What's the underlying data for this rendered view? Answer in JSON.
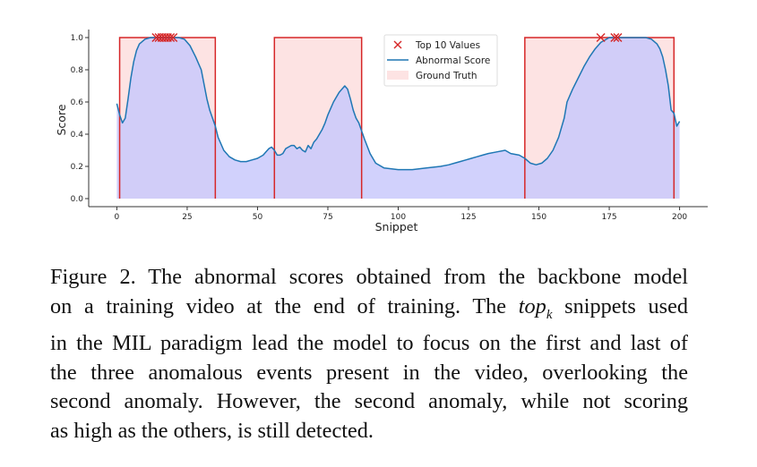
{
  "chart_data": {
    "type": "line",
    "xlabel": "Snippet",
    "ylabel": "Score",
    "xlim": [
      -10,
      210
    ],
    "ylim": [
      -0.05,
      1.05
    ],
    "xticks": [
      0,
      25,
      50,
      75,
      100,
      125,
      150,
      175,
      200
    ],
    "yticks": [
      0.0,
      0.2,
      0.4,
      0.6,
      0.8,
      1.0
    ],
    "ytick_labels": [
      "0.0",
      "0.2",
      "0.4",
      "0.6",
      "0.8",
      "1.0"
    ],
    "legend_position": "top-center",
    "grid": false,
    "series": [
      {
        "name": "Abnormal Score",
        "kind": "line-with-fill",
        "color": "#1f77b4",
        "fill_color": "#c9c9fb",
        "x": [
          0,
          1,
          2,
          3,
          4,
          5,
          6,
          7,
          8,
          10,
          12,
          15,
          18,
          20,
          22,
          24,
          26,
          28,
          30,
          32,
          33,
          34,
          35,
          36,
          38,
          40,
          42,
          44,
          46,
          48,
          50,
          52,
          53,
          54,
          55,
          56,
          57,
          58,
          59,
          60,
          61,
          62,
          63,
          64,
          65,
          66,
          67,
          68,
          69,
          70,
          71,
          72,
          73,
          74,
          75,
          76,
          77,
          78,
          79,
          80,
          81,
          82,
          83,
          84,
          85,
          86,
          87,
          88,
          90,
          92,
          95,
          100,
          105,
          110,
          115,
          118,
          120,
          122,
          124,
          126,
          128,
          130,
          132,
          135,
          138,
          140,
          143,
          145,
          147,
          149,
          151,
          153,
          155,
          157,
          159,
          160,
          162,
          164,
          166,
          168,
          170,
          172,
          175,
          180,
          185,
          188,
          190,
          192,
          193,
          194,
          195,
          196,
          197,
          198,
          199,
          200
        ],
        "y": [
          0.59,
          0.52,
          0.47,
          0.5,
          0.62,
          0.75,
          0.85,
          0.92,
          0.96,
          0.99,
          1.0,
          1.0,
          1.0,
          1.0,
          1.0,
          0.99,
          0.95,
          0.88,
          0.8,
          0.62,
          0.55,
          0.5,
          0.45,
          0.38,
          0.3,
          0.26,
          0.24,
          0.23,
          0.23,
          0.24,
          0.25,
          0.27,
          0.29,
          0.31,
          0.32,
          0.3,
          0.27,
          0.27,
          0.28,
          0.31,
          0.32,
          0.33,
          0.33,
          0.31,
          0.32,
          0.3,
          0.29,
          0.33,
          0.31,
          0.35,
          0.37,
          0.4,
          0.43,
          0.47,
          0.52,
          0.56,
          0.6,
          0.63,
          0.66,
          0.68,
          0.7,
          0.68,
          0.62,
          0.55,
          0.5,
          0.47,
          0.42,
          0.37,
          0.28,
          0.22,
          0.19,
          0.18,
          0.18,
          0.19,
          0.2,
          0.21,
          0.22,
          0.23,
          0.24,
          0.25,
          0.26,
          0.27,
          0.28,
          0.29,
          0.3,
          0.28,
          0.27,
          0.25,
          0.22,
          0.21,
          0.22,
          0.25,
          0.3,
          0.38,
          0.5,
          0.6,
          0.68,
          0.75,
          0.82,
          0.88,
          0.93,
          0.97,
          1.0,
          1.0,
          1.0,
          1.0,
          0.99,
          0.96,
          0.93,
          0.88,
          0.8,
          0.7,
          0.55,
          0.53,
          0.45,
          0.48
        ]
      },
      {
        "name": "Ground Truth",
        "kind": "step-with-fill",
        "color": "#d62728",
        "fill_color": "#fde3e3",
        "segments": [
          [
            1,
            35
          ],
          [
            56,
            87
          ],
          [
            145,
            198
          ]
        ],
        "level": 1.0
      },
      {
        "name": "Top 10 Values",
        "kind": "scatter",
        "marker": "x",
        "color": "#d62728",
        "x": [
          14,
          15,
          16,
          17,
          18,
          19,
          20,
          172,
          177,
          178
        ],
        "y": [
          1.0,
          1.0,
          1.0,
          1.0,
          1.0,
          1.0,
          1.0,
          1.0,
          1.0,
          1.0
        ]
      }
    ]
  },
  "caption": {
    "line1": "Figure 2. The abnormal scores obtained from the backbone model",
    "line2_pre": "on a training video at the end of training. The ",
    "line2_math": "top",
    "line2_sub": "k",
    "line2_post": " snippets used",
    "line3": "in the MIL paradigm lead the model to focus on the first and last of",
    "line4": "the three anomalous events present in the video, overlooking the",
    "line5": "second anomaly. However, the second anomaly, while not scoring",
    "line6": "as high as the others, is still detected."
  }
}
